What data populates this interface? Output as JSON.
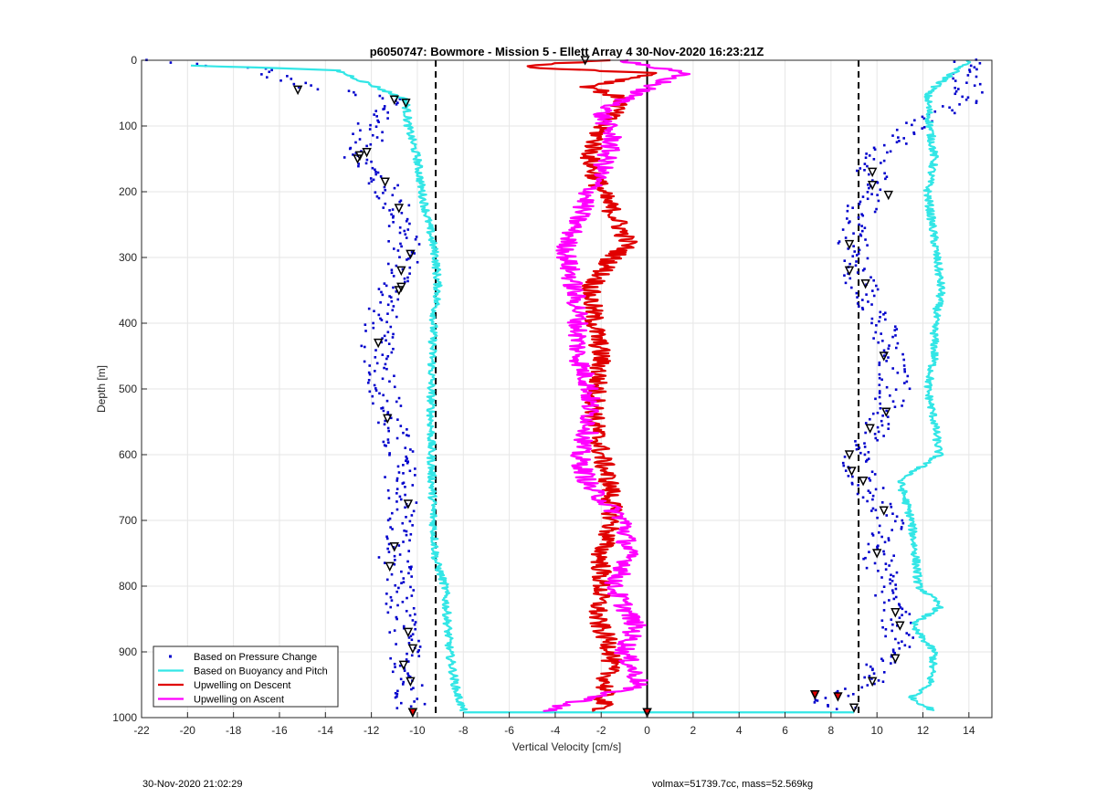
{
  "chart_data": {
    "type": "line",
    "title": "p6050747: Bowmore - Mission 5 - Ellett Array 4 30-Nov-2020 16:23:21Z",
    "xlabel": "Vertical Velocity [cm/s]",
    "ylabel": "Depth [m]",
    "xlim": [
      -22,
      15
    ],
    "ylim": [
      0,
      1000
    ],
    "y_reversed": true,
    "grid": true,
    "legend_position": "bottom-left",
    "x_ticks": [
      "-22",
      "-20",
      "-18",
      "-16",
      "-14",
      "-12",
      "-10",
      "-8",
      "-6",
      "-4",
      "-2",
      "0",
      "2",
      "4",
      "6",
      "8",
      "10",
      "12",
      "14"
    ],
    "y_ticks": [
      "0",
      "100",
      "200",
      "300",
      "400",
      "500",
      "600",
      "700",
      "800",
      "900",
      "1000"
    ],
    "colors": {
      "pressure": "#0000cc",
      "buoyancy": "#33e6e6",
      "descent": "#e00000",
      "ascent": "#ff00ff",
      "reference": "#000000"
    },
    "reference_lines": [
      {
        "x": -9.2,
        "style": "dashed"
      },
      {
        "x": 9.2,
        "style": "dashed"
      },
      {
        "x": 0,
        "style": "solid"
      }
    ],
    "series": [
      {
        "name": "Based on Pressure Change",
        "style": "points",
        "segments": [
          {
            "depth": [
              0,
              12,
              40,
              60,
              100,
              150,
              190,
              230,
              300,
              330,
              380,
              430,
              480,
              550,
              600,
              680,
              750,
              820,
              900,
              990
            ],
            "velocity": [
              -22,
              -17,
              -15,
              -11,
              -12,
              -12.5,
              -11.5,
              -10.8,
              -10.5,
              -10.8,
              -11.5,
              -11.8,
              -11.5,
              -11.2,
              -10.8,
              -10.6,
              -11,
              -10.8,
              -10.5,
              -10.2
            ]
          },
          {
            "depth": [
              0,
              60,
              100,
              150,
              200,
              280,
              320,
              380,
              450,
              500,
              560,
              600,
              640,
              700,
              760,
              820,
              870,
              910,
              950,
              975,
              990
            ],
            "velocity": [
              14,
              14,
              11.5,
              10,
              9.5,
              9,
              9,
              10,
              10.5,
              10.8,
              10,
              9,
              9.5,
              10.5,
              10,
              10.5,
              11,
              10.5,
              9.5,
              7.5,
              9
            ]
          }
        ]
      },
      {
        "name": "Based on Buoyancy and Pitch",
        "style": "line",
        "segments": [
          {
            "depth": [
              8,
              15,
              30,
              60,
              100,
              150,
              200,
              250,
              300,
              350,
              400,
              500,
              600,
              700,
              760,
              800,
              900,
              960,
              990
            ],
            "velocity": [
              -20,
              -13.5,
              -12.5,
              -10.5,
              -10.4,
              -10,
              -9.8,
              -9.5,
              -9.2,
              -9.1,
              -9.3,
              -9.4,
              -9.4,
              -9.3,
              -9.2,
              -8.8,
              -8.6,
              -8.3,
              -8
            ]
          },
          {
            "depth": [
              0,
              50,
              100,
              150,
              200,
              250,
              300,
              350,
              400,
              450,
              500,
              550,
              600,
              640,
              700,
              760,
              800,
              830,
              860,
              900,
              950,
              970,
              990
            ],
            "velocity": [
              14,
              12.2,
              12.3,
              12.5,
              12.2,
              12.4,
              12.6,
              12.8,
              12.5,
              12.5,
              12.2,
              12.5,
              12.7,
              11,
              11.5,
              11.7,
              11.8,
              12.8,
              11.5,
              12.5,
              12.3,
              11.5,
              12.5
            ]
          },
          {
            "depth": [
              992,
              992
            ],
            "velocity": [
              -8,
              9
            ]
          }
        ]
      },
      {
        "name": "Upwelling on Descent",
        "style": "line",
        "depth": [
          0,
          10,
          20,
          40,
          60,
          80,
          100,
          150,
          200,
          230,
          280,
          300,
          350,
          400,
          450,
          500,
          550,
          600,
          650,
          700,
          750,
          800,
          850,
          900,
          950,
          990
        ],
        "velocity": [
          -2,
          -5.5,
          0.5,
          -2.5,
          -1,
          -1.5,
          -2,
          -2.5,
          -2,
          -1.5,
          -0.8,
          -1.5,
          -2.5,
          -2.3,
          -2,
          -2.2,
          -2.3,
          -2,
          -1.6,
          -1.5,
          -2,
          -2,
          -2.2,
          -1.5,
          -1.8,
          -2
        ]
      },
      {
        "name": "Upwelling on Ascent",
        "style": "line",
        "depth": [
          0,
          20,
          50,
          80,
          120,
          170,
          200,
          240,
          280,
          300,
          330,
          380,
          450,
          500,
          560,
          600,
          650,
          700,
          760,
          800,
          860,
          900,
          950,
          990
        ],
        "velocity": [
          -1,
          1.5,
          -0.5,
          -2,
          -1.5,
          -2,
          -2.5,
          -3,
          -3.5,
          -3.5,
          -3.3,
          -3,
          -3,
          -2.5,
          -2.5,
          -3,
          -2.5,
          -1,
          -0.8,
          -1.5,
          -0.5,
          -1,
          -0.3,
          -4.5
        ]
      }
    ],
    "markers_triangles": {
      "depth": [
        0,
        45,
        60,
        65,
        140,
        145,
        150,
        185,
        225,
        295,
        320,
        345,
        350,
        430,
        545,
        675,
        740,
        770,
        870,
        895,
        920,
        945,
        992,
        170,
        190,
        205,
        280,
        320,
        340,
        450,
        535,
        560,
        600,
        625,
        640,
        685,
        750,
        840,
        860,
        910,
        945,
        965,
        985,
        992
      ],
      "velocity": [
        -2.7,
        -15.2,
        -11,
        -10.5,
        -12.2,
        -12.5,
        -12.6,
        -11.4,
        -10.8,
        -10.3,
        -10.7,
        -10.7,
        -10.8,
        -11.7,
        -11.3,
        -10.4,
        -11,
        -11.2,
        -10.4,
        -10.2,
        -10.6,
        -10.3,
        -10.2,
        9.8,
        9.8,
        10.5,
        8.8,
        8.8,
        9.5,
        10.3,
        10.4,
        9.7,
        8.8,
        8.9,
        9.4,
        10.3,
        10,
        10.8,
        11,
        10.8,
        9.8,
        7.3,
        9,
        0
      ]
    },
    "markers_red_triangles": {
      "depth": [
        965,
        968,
        992,
        992
      ],
      "velocity": [
        7.3,
        8.3,
        -10.2,
        0
      ]
    }
  },
  "footer": {
    "timestamp": "30-Nov-2020 21:02:29",
    "info": "volmax=51739.7cc, mass=52.569kg"
  }
}
